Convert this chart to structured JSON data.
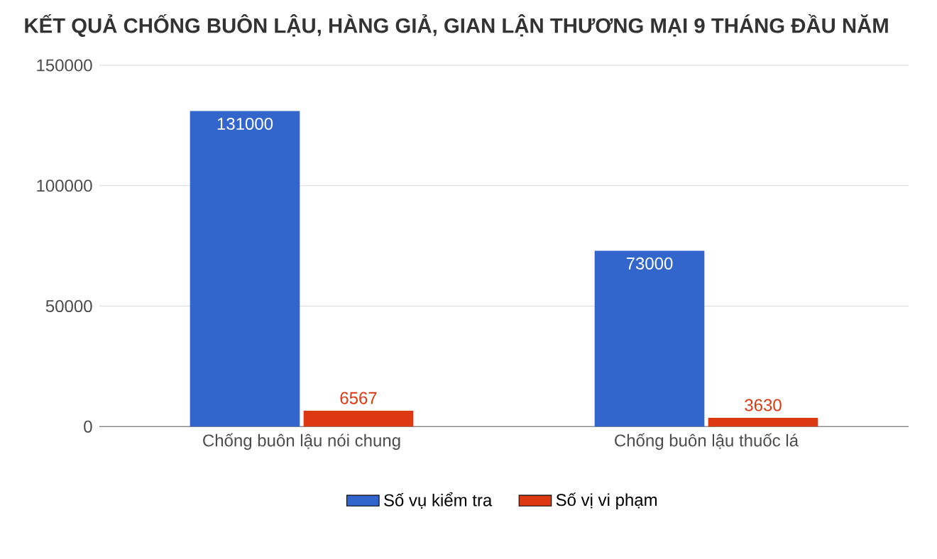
{
  "chart_data": {
    "type": "bar",
    "title": "KẾT QUẢ CHỐNG BUÔN LẬU, HÀNG GIẢ, GIAN LẬN THƯƠNG MẠI 9 THÁNG ĐẦU NĂM",
    "categories": [
      "Chống buôn lậu nói chung",
      "Chống buôn lậu thuốc lá"
    ],
    "series": [
      {
        "name": "Số vụ kiểm tra",
        "color": "#3366cc",
        "values": [
          131000,
          73000
        ]
      },
      {
        "name": "Số vị vi phạm",
        "color": "#dc3912",
        "values": [
          6567,
          3630
        ]
      }
    ],
    "ylim": [
      0,
      150000
    ],
    "yticks": [
      0,
      50000,
      100000,
      150000
    ],
    "grid": "y",
    "legend": "bottom",
    "data_labels": true
  }
}
